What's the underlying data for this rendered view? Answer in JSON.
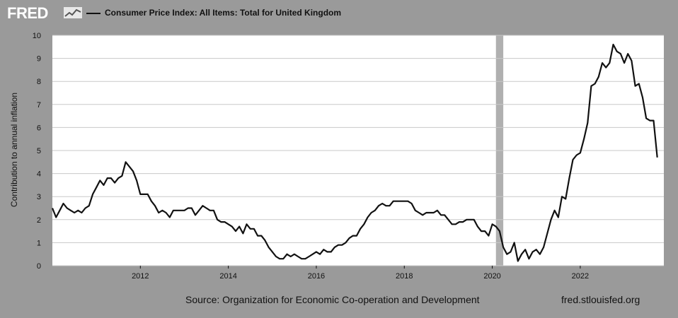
{
  "header": {
    "logo_text": "FRED",
    "title": "Consumer Price Index: All Items: Total for United Kingdom"
  },
  "footer": {
    "source": "Source: Organization for Economic Co-operation and Development",
    "site": "fred.stlouisfed.org"
  },
  "colors": {
    "background": "#9a9a9a",
    "plot_background": "#ffffff",
    "line": "#111111",
    "recession": "#b0b0b0"
  },
  "chart_data": {
    "type": "line",
    "title": "Consumer Price Index: All Items: Total for United Kingdom",
    "ylabel": "Contribution to annual inflation",
    "xlabel": "",
    "ylim": [
      0,
      10
    ],
    "xlim": [
      2010.0,
      2023.9
    ],
    "yticks": [
      0,
      1,
      2,
      3,
      4,
      5,
      6,
      7,
      8,
      9,
      10
    ],
    "xticks": [
      2012,
      2014,
      2016,
      2018,
      2020,
      2022
    ],
    "grid": "horizontal",
    "recession_shading": [
      {
        "start": "2020-02",
        "end": "2020-04"
      }
    ],
    "series": [
      {
        "name": "Consumer Price Index: All Items: Total for United Kingdom",
        "start": "2010-01",
        "frequency": "monthly",
        "values": [
          2.5,
          2.1,
          2.4,
          2.7,
          2.5,
          2.4,
          2.3,
          2.4,
          2.3,
          2.5,
          2.6,
          3.1,
          3.4,
          3.7,
          3.5,
          3.8,
          3.8,
          3.6,
          3.8,
          3.9,
          4.5,
          4.3,
          4.1,
          3.7,
          3.1,
          3.1,
          3.1,
          2.8,
          2.6,
          2.3,
          2.4,
          2.3,
          2.1,
          2.4,
          2.4,
          2.4,
          2.4,
          2.5,
          2.5,
          2.2,
          2.4,
          2.6,
          2.5,
          2.4,
          2.4,
          2.0,
          1.9,
          1.9,
          1.8,
          1.7,
          1.5,
          1.7,
          1.4,
          1.8,
          1.6,
          1.6,
          1.3,
          1.3,
          1.1,
          0.8,
          0.6,
          0.4,
          0.3,
          0.3,
          0.5,
          0.4,
          0.5,
          0.4,
          0.3,
          0.3,
          0.4,
          0.5,
          0.6,
          0.5,
          0.7,
          0.6,
          0.6,
          0.8,
          0.9,
          0.9,
          1.0,
          1.2,
          1.3,
          1.3,
          1.6,
          1.8,
          2.1,
          2.3,
          2.4,
          2.6,
          2.7,
          2.6,
          2.6,
          2.8,
          2.8,
          2.8,
          2.8,
          2.8,
          2.7,
          2.4,
          2.3,
          2.2,
          2.3,
          2.3,
          2.3,
          2.4,
          2.2,
          2.2,
          2.0,
          1.8,
          1.8,
          1.9,
          1.9,
          2.0,
          2.0,
          2.0,
          1.7,
          1.5,
          1.5,
          1.3,
          1.8,
          1.7,
          1.5,
          0.8,
          0.5,
          0.6,
          1.0,
          0.2,
          0.5,
          0.7,
          0.3,
          0.6,
          0.7,
          0.5,
          0.8,
          1.4,
          2.0,
          2.4,
          2.1,
          3.0,
          2.9,
          3.8,
          4.6,
          4.8,
          4.9,
          5.5,
          6.2,
          7.8,
          7.9,
          8.2,
          8.8,
          8.6,
          8.8,
          9.6,
          9.3,
          9.2,
          8.8,
          9.2,
          8.9,
          7.8,
          7.9,
          7.3,
          6.4,
          6.3,
          6.3,
          4.7
        ]
      }
    ]
  }
}
